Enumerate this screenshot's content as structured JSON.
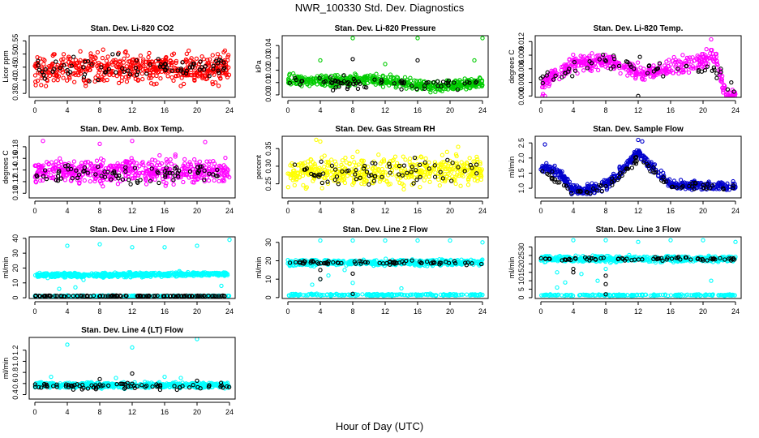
{
  "figure": {
    "title": "NWR_100330  Std. Dev. Diagnostics",
    "xlabel": "Hour of Day (UTC)"
  },
  "chart_data": [
    {
      "type": "scatter",
      "title": "Stan. Dev. Li-820 CO2",
      "ylabel": "Licor ppm",
      "xlim": [
        0,
        24
      ],
      "xticks": [
        0,
        4,
        8,
        12,
        16,
        20,
        24
      ],
      "ylim": [
        0.335,
        0.57
      ],
      "yticks": [
        0.35,
        0.4,
        0.45,
        0.5,
        0.55
      ],
      "ytick_labels": [
        "0.35",
        "0.40",
        "0.45",
        "0.50",
        "0.55"
      ],
      "series": [
        {
          "color": "#ff0000",
          "n": 520,
          "base": [
            [
              0,
              0.44
            ],
            [
              24,
              0.45
            ]
          ],
          "spread": 0.05
        },
        {
          "color": "#000000",
          "n": 80,
          "base": [
            [
              0,
              0.44
            ],
            [
              24,
              0.45
            ]
          ],
          "spread": 0.04
        }
      ]
    },
    {
      "type": "scatter",
      "title": "Stan. Dev. Li-820 Pressure",
      "ylabel": "kPa",
      "xlim": [
        0,
        24
      ],
      "xticks": [
        0,
        4,
        8,
        12,
        16,
        20,
        24
      ],
      "ylim": [
        -0.002,
        0.048
      ],
      "yticks": [
        0.0,
        0.01,
        0.02,
        0.03,
        0.04
      ],
      "ytick_labels": [
        "0.00",
        "0.01",
        "0.02",
        "0.03",
        "0.04"
      ],
      "series": [
        {
          "color": "#00cc00",
          "n": 520,
          "base": [
            [
              0,
              0.012
            ],
            [
              6,
              0.011
            ],
            [
              10,
              0.013
            ],
            [
              14,
              0.01
            ],
            [
              18,
              0.007
            ],
            [
              24,
              0.01
            ]
          ],
          "spread": 0.004,
          "extra": [
            [
              8,
              0.046
            ],
            [
              16,
              0.046
            ],
            [
              24,
              0.046
            ],
            [
              23,
              0.028
            ],
            [
              4,
              0.028
            ],
            [
              12,
              0.025
            ]
          ]
        },
        {
          "color": "#000000",
          "n": 70,
          "base": [
            [
              0,
              0.01
            ],
            [
              24,
              0.008
            ]
          ],
          "spread": 0.004,
          "extra": [
            [
              8,
              0.029
            ],
            [
              16,
              0.028
            ]
          ]
        }
      ]
    },
    {
      "type": "scatter",
      "title": "Stan. Dev. Li-820 Temp.",
      "ylabel": "degrees C",
      "xlim": [
        0,
        24
      ],
      "xticks": [
        0,
        4,
        8,
        12,
        16,
        20,
        24
      ],
      "ylim": [
        -0.0003,
        0.0133
      ],
      "yticks": [
        0.0,
        0.003,
        0.006,
        0.009,
        0.012
      ],
      "ytick_labels": [
        "0.000",
        "0.003",
        "0.006",
        "0.009",
        "0.012"
      ],
      "series": [
        {
          "color": "#ff00ff",
          "n": 460,
          "base": [
            [
              0,
              0.002
            ],
            [
              2,
              0.005
            ],
            [
              4,
              0.007
            ],
            [
              8,
              0.008
            ],
            [
              12,
              0.005
            ],
            [
              16,
              0.006
            ],
            [
              20,
              0.008
            ],
            [
              21.5,
              0.009
            ],
            [
              22.5,
              0.002
            ],
            [
              23,
              0.0
            ],
            [
              24,
              0.0
            ]
          ],
          "spread": 0.0015,
          "extra": [
            [
              0.2,
              0.0
            ],
            [
              0.5,
              0.0
            ],
            [
              21,
              0.0125
            ]
          ]
        },
        {
          "color": "#000000",
          "n": 60,
          "base": [
            [
              0,
              0.004
            ],
            [
              8,
              0.008
            ],
            [
              16,
              0.006
            ],
            [
              22,
              0.006
            ],
            [
              24,
              0.0
            ]
          ],
          "spread": 0.0015,
          "extra": [
            [
              12,
              0.0
            ]
          ]
        }
      ]
    },
    {
      "type": "scatter",
      "title": "Stan. Dev. Amb. Box Temp.",
      "ylabel": "degrees C",
      "xlim": [
        0,
        24
      ],
      "xticks": [
        0,
        4,
        8,
        12,
        16,
        20,
        24
      ],
      "ylim": [
        0.092,
        0.198
      ],
      "yticks": [
        0.1,
        0.12,
        0.14,
        0.16,
        0.18
      ],
      "ytick_labels": [
        "0.10",
        "0.12",
        "0.14",
        "0.16",
        "0.18"
      ],
      "series": [
        {
          "color": "#ff00ff",
          "n": 520,
          "base": [
            [
              0,
              0.138
            ],
            [
              24,
              0.138
            ]
          ],
          "spread": 0.018,
          "extra": [
            [
              1,
              0.19
            ],
            [
              8,
              0.185
            ],
            [
              12,
              0.19
            ],
            [
              21,
              0.188
            ]
          ]
        },
        {
          "color": "#000000",
          "n": 80,
          "base": [
            [
              0,
              0.135
            ],
            [
              24,
              0.135
            ]
          ],
          "spread": 0.016
        }
      ]
    },
    {
      "type": "scatter",
      "title": "Stan. Dev. Gas Stream RH",
      "ylabel": "percent",
      "xlim": [
        0,
        24
      ],
      "xticks": [
        0,
        4,
        8,
        12,
        16,
        20,
        24
      ],
      "ylim": [
        0.21,
        0.385
      ],
      "yticks": [
        0.25,
        0.3,
        0.35
      ],
      "ytick_labels": [
        "0.25",
        "0.30",
        "0.35"
      ],
      "series": [
        {
          "color": "#ffff00",
          "n": 520,
          "base": [
            [
              0,
              0.28
            ],
            [
              24,
              0.29
            ]
          ],
          "spread": 0.035,
          "extra": [
            [
              3.5,
              0.375
            ],
            [
              4,
              0.37
            ],
            [
              21,
              0.355
            ]
          ]
        },
        {
          "color": "#000000",
          "n": 70,
          "base": [
            [
              0,
              0.28
            ],
            [
              24,
              0.29
            ]
          ],
          "spread": 0.03
        }
      ]
    },
    {
      "type": "scatter",
      "title": "Stan. Dev. Sample Flow",
      "ylabel": "ml/min",
      "xlim": [
        0,
        24
      ],
      "xticks": [
        0,
        4,
        8,
        12,
        16,
        20,
        24
      ],
      "ylim": [
        0.68,
        2.72
      ],
      "yticks": [
        1.0,
        1.5,
        2.0,
        2.5
      ],
      "ytick_labels": [
        "1.0",
        "1.5",
        "2.0",
        "2.5"
      ],
      "series": [
        {
          "color": "#0000cc",
          "n": 520,
          "base": [
            [
              0,
              1.7
            ],
            [
              2,
              1.6
            ],
            [
              4,
              0.95
            ],
            [
              6,
              0.95
            ],
            [
              8,
              1.1
            ],
            [
              10,
              1.6
            ],
            [
              12,
              2.2
            ],
            [
              13,
              1.9
            ],
            [
              16,
              1.1
            ],
            [
              20,
              1.1
            ],
            [
              24,
              1.05
            ]
          ],
          "spread": 0.14,
          "extra": [
            [
              0.5,
              2.45
            ],
            [
              12,
              2.6
            ],
            [
              12.5,
              2.55
            ]
          ]
        },
        {
          "color": "#000000",
          "n": 80,
          "base": [
            [
              0,
              1.6
            ],
            [
              4,
              0.9
            ],
            [
              8,
              1.0
            ],
            [
              12,
              2.0
            ],
            [
              16,
              1.1
            ],
            [
              24,
              1.0
            ]
          ],
          "spread": 0.12
        }
      ]
    },
    {
      "type": "scatter",
      "title": "Stan. Dev. Line 1 Flow",
      "ylabel": "ml/min",
      "xlim": [
        0,
        24
      ],
      "xticks": [
        0,
        4,
        8,
        12,
        16,
        20,
        24
      ],
      "ylim": [
        -0.5,
        41
      ],
      "yticks": [
        0,
        10,
        20,
        30,
        40
      ],
      "ytick_labels": [
        "0",
        "10",
        "20",
        "30",
        "40"
      ],
      "series": [
        {
          "color": "#00ffff",
          "n": 560,
          "base": [
            [
              0,
              15
            ],
            [
              24,
              16
            ]
          ],
          "spread": 1.3,
          "extra": [
            [
              4,
              35
            ],
            [
              8,
              36
            ],
            [
              12,
              34
            ],
            [
              16,
              34
            ],
            [
              20,
              35
            ],
            [
              24,
              39
            ],
            [
              5,
              7
            ],
            [
              6,
              12
            ],
            [
              23,
              8
            ],
            [
              3,
              6
            ]
          ]
        },
        {
          "color": "#00ffff",
          "n": 200,
          "base": [
            [
              0,
              1.2
            ],
            [
              24,
              1.2
            ]
          ],
          "spread": 0.3
        },
        {
          "color": "#000000",
          "n": 110,
          "base": [
            [
              0,
              1.2
            ],
            [
              24,
              1.2
            ]
          ],
          "spread": 0.3
        }
      ]
    },
    {
      "type": "scatter",
      "title": "Stan. Dev. Line 2 Flow",
      "ylabel": "ml/min",
      "xlim": [
        0,
        24
      ],
      "xticks": [
        0,
        4,
        8,
        12,
        16,
        20,
        24
      ],
      "ylim": [
        -0.5,
        33
      ],
      "yticks": [
        0,
        10,
        20,
        30
      ],
      "ytick_labels": [
        "0",
        "10",
        "20",
        "30"
      ],
      "series": [
        {
          "color": "#00ffff",
          "n": 520,
          "base": [
            [
              0,
              19
            ],
            [
              24,
              19
            ]
          ],
          "spread": 1.4,
          "extra": [
            [
              4,
              31
            ],
            [
              8,
              31
            ],
            [
              12,
              31
            ],
            [
              16,
              31
            ],
            [
              20,
              31
            ],
            [
              24,
              30
            ],
            [
              3,
              7
            ],
            [
              4,
              10
            ],
            [
              5,
              12
            ],
            [
              8,
              8
            ],
            [
              7,
              15
            ],
            [
              14,
              5
            ]
          ]
        },
        {
          "color": "#00ffff",
          "n": 200,
          "base": [
            [
              0,
              1.5
            ],
            [
              24,
              1.5
            ]
          ],
          "spread": 0.5
        },
        {
          "color": "#000000",
          "n": 70,
          "base": [
            [
              0,
              19
            ],
            [
              24,
              19
            ]
          ],
          "spread": 1.0,
          "extra": [
            [
              4,
              10
            ],
            [
              4,
              15
            ],
            [
              8,
              13
            ],
            [
              8,
              2
            ]
          ]
        }
      ]
    },
    {
      "type": "scatter",
      "title": "Stan. Dev. Line 3 Flow",
      "ylabel": "ml/min",
      "xlim": [
        0,
        24
      ],
      "xticks": [
        0,
        4,
        8,
        12,
        16,
        20,
        24
      ],
      "ylim": [
        -0.5,
        36
      ],
      "yticks": [
        0,
        5,
        10,
        15,
        20,
        25,
        30
      ],
      "ytick_labels": [
        "0",
        "5",
        "10",
        "15",
        "20",
        "25",
        "30"
      ],
      "series": [
        {
          "color": "#00ffff",
          "n": 520,
          "base": [
            [
              0,
              23
            ],
            [
              24,
              23
            ]
          ],
          "spread": 1.5,
          "extra": [
            [
              4,
              34
            ],
            [
              8,
              34
            ],
            [
              12,
              33
            ],
            [
              16,
              34
            ],
            [
              20,
              34
            ],
            [
              24,
              33
            ],
            [
              2,
              6
            ],
            [
              3,
              9
            ],
            [
              5,
              14
            ],
            [
              7,
              10
            ],
            [
              8,
              17
            ],
            [
              21,
              10
            ],
            [
              2,
              15
            ]
          ]
        },
        {
          "color": "#00ffff",
          "n": 200,
          "base": [
            [
              0,
              1.5
            ],
            [
              24,
              1.5
            ]
          ],
          "spread": 0.4
        },
        {
          "color": "#000000",
          "n": 70,
          "base": [
            [
              0,
              23
            ],
            [
              24,
              23
            ]
          ],
          "spread": 1.0,
          "extra": [
            [
              4,
              15
            ],
            [
              4,
              17
            ],
            [
              8,
              13
            ],
            [
              8,
              8
            ],
            [
              8,
              2
            ]
          ]
        }
      ]
    },
    {
      "type": "scatter",
      "title": "Stan. Dev. Line 4 (LT) Flow",
      "ylabel": "ml/min",
      "xlim": [
        0,
        24
      ],
      "xticks": [
        0,
        4,
        8,
        12,
        16,
        20,
        24
      ],
      "ylim": [
        0.32,
        1.43
      ],
      "yticks": [
        0.4,
        0.6,
        0.8,
        1.0,
        1.2
      ],
      "ytick_labels": [
        "0.4",
        "0.6",
        "0.8",
        "1.0",
        "1.2"
      ],
      "series": [
        {
          "color": "#00ffff",
          "n": 560,
          "base": [
            [
              0,
              0.57
            ],
            [
              24,
              0.57
            ]
          ],
          "spread": 0.045,
          "extra": [
            [
              4,
              1.3
            ],
            [
              12,
              1.25
            ],
            [
              20,
              1.4
            ],
            [
              2,
              0.72
            ],
            [
              10,
              0.7
            ],
            [
              16,
              0.72
            ],
            [
              18,
              0.7
            ]
          ]
        },
        {
          "color": "#000000",
          "n": 80,
          "base": [
            [
              0,
              0.55
            ],
            [
              24,
              0.55
            ]
          ],
          "spread": 0.05,
          "extra": [
            [
              12,
              0.78
            ],
            [
              8,
              0.68
            ],
            [
              20,
              0.65
            ]
          ]
        }
      ]
    }
  ]
}
